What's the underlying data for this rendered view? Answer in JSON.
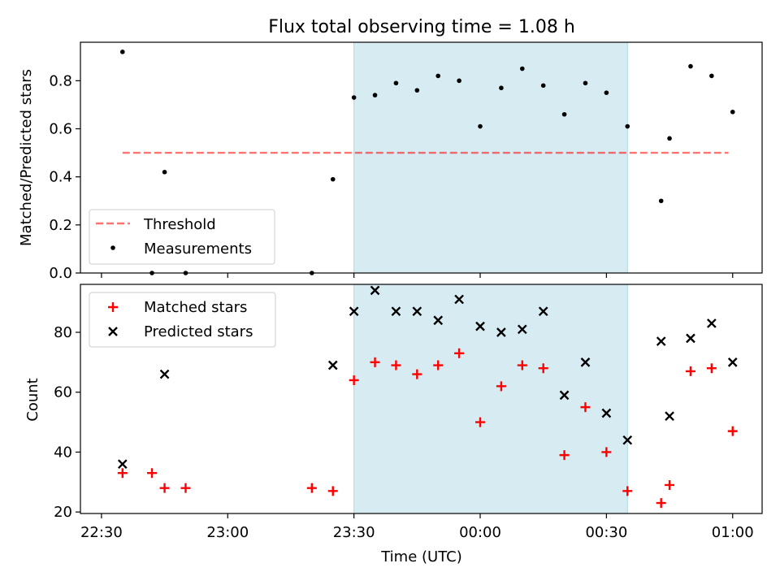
{
  "figure": {
    "title": "Flux total observing time = 1.08 h"
  },
  "colors": {
    "highlight": "#add8e6",
    "threshold": "#ff0000",
    "matched": "#ff0000",
    "predicted": "#000000",
    "measurements": "#000000"
  },
  "chart_data": [
    {
      "type": "scatter",
      "ylabel": "Matched/Predicted stars",
      "ylim": [
        0,
        0.96
      ],
      "yticks": [
        0.0,
        0.2,
        0.4,
        0.6,
        0.8
      ],
      "ytick_labels": [
        "0.0",
        "0.2",
        "0.4",
        "0.6",
        "0.8"
      ],
      "xlim": [
        "22:25",
        "01:07"
      ],
      "highlight_span": [
        "23:30",
        "00:35"
      ],
      "threshold": {
        "name": "Threshold",
        "value": 0.5,
        "x": [
          "22:35",
          "00:59"
        ]
      },
      "series": [
        {
          "name": "Measurements",
          "x": [
            "22:35",
            "22:42",
            "22:45",
            "22:50",
            "23:20",
            "23:25",
            "23:30",
            "23:35",
            "23:40",
            "23:45",
            "23:50",
            "23:55",
            "00:00",
            "00:05",
            "00:10",
            "00:15",
            "00:20",
            "00:25",
            "00:30",
            "00:35",
            "00:43",
            "00:45",
            "00:50",
            "00:55",
            "01:00"
          ],
          "y": [
            0.92,
            0.0,
            0.42,
            0.0,
            0.0,
            0.39,
            0.73,
            0.74,
            0.79,
            0.76,
            0.82,
            0.8,
            0.61,
            0.77,
            0.85,
            0.78,
            0.66,
            0.79,
            0.75,
            0.61,
            0.3,
            0.56,
            0.86,
            0.82,
            0.67
          ]
        }
      ],
      "legend": {
        "position": "lower-left",
        "entries": [
          "Threshold",
          "Measurements"
        ]
      }
    },
    {
      "type": "scatter",
      "xlabel": "Time (UTC)",
      "ylabel": "Count",
      "ylim": [
        19.5,
        96
      ],
      "yticks": [
        20,
        40,
        60,
        80
      ],
      "ytick_labels": [
        "20",
        "40",
        "60",
        "80"
      ],
      "xlim": [
        "22:25",
        "01:07"
      ],
      "xticks": [
        "22:30",
        "23:00",
        "23:30",
        "00:00",
        "00:30",
        "01:00"
      ],
      "xtick_labels": [
        "22:30",
        "23:00",
        "23:30",
        "00:00",
        "00:30",
        "01:00"
      ],
      "highlight_span": [
        "23:30",
        "00:35"
      ],
      "series": [
        {
          "name": "Matched stars",
          "x": [
            "22:35",
            "22:42",
            "22:45",
            "22:50",
            "23:20",
            "23:25",
            "23:30",
            "23:35",
            "23:40",
            "23:45",
            "23:50",
            "23:55",
            "00:00",
            "00:05",
            "00:10",
            "00:15",
            "00:20",
            "00:25",
            "00:30",
            "00:35",
            "00:43",
            "00:45",
            "00:50",
            "00:55",
            "01:00"
          ],
          "y": [
            33,
            33,
            28,
            28,
            28,
            27,
            64,
            70,
            69,
            66,
            69,
            73,
            50,
            62,
            69,
            68,
            39,
            55,
            40,
            27,
            23,
            29,
            67,
            68,
            47
          ]
        },
        {
          "name": "Predicted stars",
          "x": [
            "22:35",
            "22:45",
            "23:25",
            "23:30",
            "23:35",
            "23:40",
            "23:45",
            "23:50",
            "23:55",
            "00:00",
            "00:05",
            "00:10",
            "00:15",
            "00:20",
            "00:25",
            "00:30",
            "00:35",
            "00:43",
            "00:45",
            "00:50",
            "00:55",
            "01:00"
          ],
          "y": [
            36,
            66,
            69,
            87,
            94,
            87,
            87,
            84,
            91,
            82,
            80,
            81,
            87,
            59,
            70,
            53,
            44,
            77,
            52,
            78,
            83,
            70
          ]
        }
      ],
      "legend": {
        "position": "upper-left",
        "entries": [
          "Matched stars",
          "Predicted stars"
        ]
      }
    }
  ]
}
